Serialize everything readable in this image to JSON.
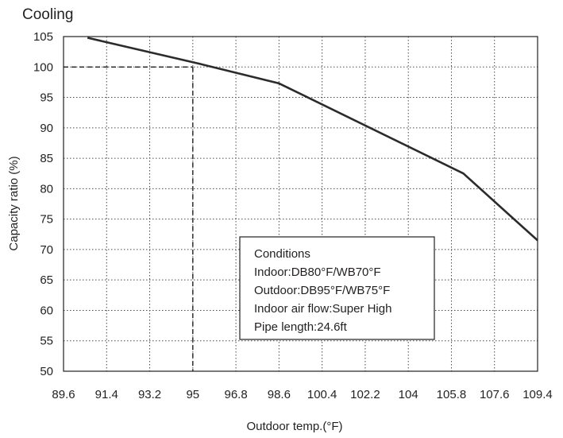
{
  "chart_data": {
    "type": "line",
    "title": "Cooling",
    "xlabel": "Outdoor temp.(°F)",
    "ylabel": "Capacity ratio (%)",
    "xlim": [
      89.6,
      109.4
    ],
    "ylim": [
      50,
      105
    ],
    "x_ticks": [
      "89.6",
      "91.4",
      "93.2",
      "95",
      "96.8",
      "98.6",
      "100.4",
      "102.2",
      "104",
      "105.8",
      "107.6",
      "109.4"
    ],
    "y_ticks": [
      "50",
      "55",
      "60",
      "65",
      "70",
      "75",
      "80",
      "85",
      "90",
      "95",
      "100",
      "105"
    ],
    "grid": true,
    "series": [
      {
        "x": [
          90.6,
          95.3,
          98.6,
          106.3,
          109.4
        ],
        "y": [
          104.8,
          100.5,
          97.3,
          82.5,
          71.5
        ]
      }
    ],
    "reference": {
      "x": 95,
      "y": 100
    },
    "conditions": {
      "heading": "Conditions",
      "lines": [
        "Indoor:DB80°F/WB70°F",
        "Outdoor:DB95°F/WB75°F",
        "Indoor air flow:Super High",
        "Pipe length:24.6ft"
      ]
    }
  }
}
